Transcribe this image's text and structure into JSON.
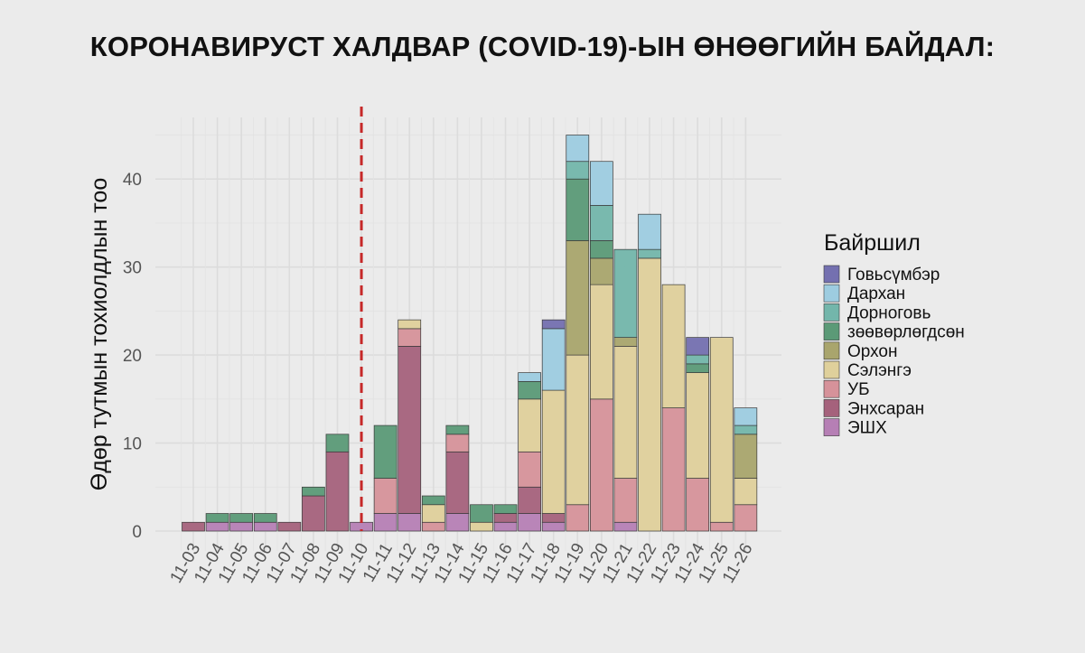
{
  "title": "КОРОНАВИРУСТ ХАЛДВАР (COVID-19)-ЫН ӨНӨӨГИЙН БАЙДАЛ:",
  "chart_data": {
    "type": "bar",
    "stacked": true,
    "ylabel": "Өдөр тутмын тохиолдлын тоо",
    "xlabel": "",
    "ylim": [
      0,
      47
    ],
    "yticks": [
      0,
      10,
      20,
      30,
      40
    ],
    "grid": true,
    "legend": {
      "title": "Байршил",
      "position": "right"
    },
    "reference_line": {
      "x": "11-10",
      "style": "dashed",
      "color": "#c62828"
    },
    "categories": [
      "11-03",
      "11-04",
      "11-05",
      "11-06",
      "11-07",
      "11-08",
      "11-09",
      "11-10",
      "11-11",
      "11-12",
      "11-13",
      "11-14",
      "11-15",
      "11-16",
      "11-17",
      "11-18",
      "11-19",
      "11-20",
      "11-21",
      "11-22",
      "11-23",
      "11-24",
      "11-25",
      "11-26"
    ],
    "series": [
      {
        "name": "ЭШХ",
        "color": "#b67fb5",
        "values": [
          0,
          1,
          1,
          1,
          0,
          0,
          0,
          1,
          2,
          2,
          0,
          2,
          0,
          1,
          2,
          1,
          0,
          0,
          1,
          0,
          0,
          0,
          0,
          0
        ]
      },
      {
        "name": "Энхсаран",
        "color": "#a5627c",
        "values": [
          1,
          0,
          0,
          0,
          1,
          4,
          9,
          0,
          0,
          19,
          0,
          7,
          0,
          1,
          3,
          1,
          0,
          0,
          0,
          0,
          0,
          0,
          0,
          0
        ]
      },
      {
        "name": "УБ",
        "color": "#d6929a",
        "values": [
          0,
          0,
          0,
          0,
          0,
          0,
          0,
          0,
          4,
          2,
          1,
          2,
          0,
          0,
          4,
          0,
          3,
          15,
          5,
          0,
          14,
          6,
          1,
          3
        ]
      },
      {
        "name": "Сэлэнгэ",
        "color": "#dfd09b",
        "values": [
          0,
          0,
          0,
          0,
          0,
          0,
          0,
          0,
          0,
          1,
          2,
          0,
          1,
          0,
          6,
          14,
          17,
          13,
          15,
          31,
          14,
          12,
          21,
          3
        ]
      },
      {
        "name": "Орхон",
        "color": "#a9a56d",
        "values": [
          0,
          0,
          0,
          0,
          0,
          0,
          0,
          0,
          0,
          0,
          0,
          0,
          0,
          0,
          0,
          0,
          13,
          3,
          1,
          0,
          0,
          0,
          0,
          5
        ]
      },
      {
        "name": "зөөвөрлөгдсөн",
        "color": "#5b9a77",
        "values": [
          0,
          1,
          1,
          1,
          0,
          1,
          2,
          0,
          6,
          0,
          1,
          1,
          2,
          1,
          2,
          0,
          7,
          2,
          0,
          0,
          0,
          1,
          0,
          0
        ]
      },
      {
        "name": "Дорноговь",
        "color": "#73b6ab",
        "values": [
          0,
          0,
          0,
          0,
          0,
          0,
          0,
          0,
          0,
          0,
          0,
          0,
          0,
          0,
          0,
          0,
          2,
          4,
          10,
          1,
          0,
          1,
          0,
          1
        ]
      },
      {
        "name": "Дархан",
        "color": "#9dcce0",
        "values": [
          0,
          0,
          0,
          0,
          0,
          0,
          0,
          0,
          0,
          0,
          0,
          0,
          0,
          0,
          1,
          7,
          3,
          5,
          0,
          4,
          0,
          0,
          0,
          2
        ]
      },
      {
        "name": "Говьсүмбэр",
        "color": "#7470b0",
        "values": [
          0,
          0,
          0,
          0,
          0,
          0,
          0,
          0,
          0,
          0,
          0,
          0,
          0,
          0,
          0,
          1,
          0,
          0,
          0,
          0,
          0,
          2,
          0,
          0
        ]
      }
    ],
    "legend_order": [
      "Говьсүмбэр",
      "Дархан",
      "Дорноговь",
      "зөөвөрлөгдсөн",
      "Орхон",
      "Сэлэнгэ",
      "УБ",
      "Энхсаран",
      "ЭШХ"
    ]
  }
}
